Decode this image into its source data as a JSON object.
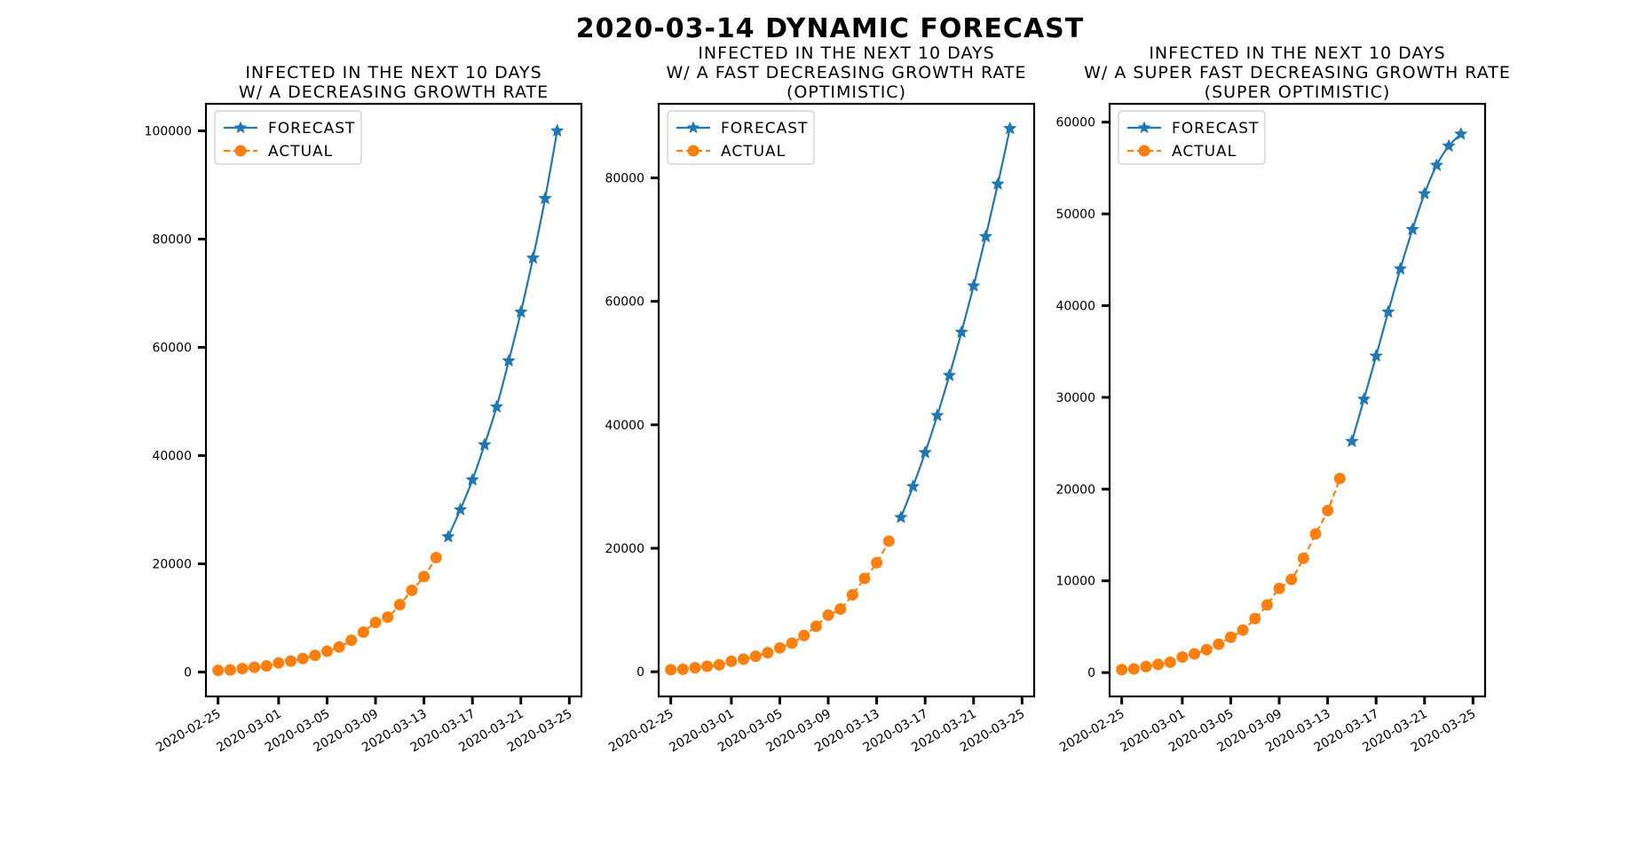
{
  "title": "2020-03-14 DYNAMIC FORECAST",
  "colors": {
    "forecast": "#1f77b4",
    "actual": "#ff7f0e"
  },
  "chart_data": [
    {
      "type": "line",
      "title_lines": [
        "INFECTED IN THE NEXT 10 DAYS",
        "W/ A DECREASING GROWTH RATE"
      ],
      "xlabel": "",
      "ylabel": "",
      "legend": "top-left",
      "grid": false,
      "xlim": [
        "2020-02-24",
        "2020-03-26"
      ],
      "ylim": [
        -4500,
        105000
      ],
      "xticks": [
        "2020-02-25",
        "2020-03-01",
        "2020-03-05",
        "2020-03-09",
        "2020-03-13",
        "2020-03-17",
        "2020-03-21",
        "2020-03-25"
      ],
      "yticks": [
        0,
        20000,
        40000,
        60000,
        80000,
        100000
      ],
      "series": [
        {
          "name": "FORECAST",
          "marker": "star",
          "x": [
            "2020-03-15",
            "2020-03-16",
            "2020-03-17",
            "2020-03-18",
            "2020-03-19",
            "2020-03-20",
            "2020-03-21",
            "2020-03-22",
            "2020-03-23",
            "2020-03-24"
          ],
          "y": [
            25000,
            30000,
            35500,
            42000,
            49000,
            57500,
            66500,
            76500,
            87500,
            100000
          ]
        },
        {
          "name": "ACTUAL",
          "marker": "circle",
          "x": [
            "2020-02-25",
            "2020-02-26",
            "2020-02-27",
            "2020-02-28",
            "2020-02-29",
            "2020-03-01",
            "2020-03-02",
            "2020-03-03",
            "2020-03-04",
            "2020-03-05",
            "2020-03-06",
            "2020-03-07",
            "2020-03-08",
            "2020-03-09",
            "2020-03-10",
            "2020-03-11",
            "2020-03-12",
            "2020-03-13",
            "2020-03-14"
          ],
          "y": [
            322,
            400,
            650,
            888,
            1128,
            1694,
            2036,
            2502,
            3089,
            3858,
            4636,
            5883,
            7375,
            9172,
            10149,
            12462,
            15113,
            17660,
            21157
          ]
        }
      ]
    },
    {
      "type": "line",
      "title_lines": [
        "INFECTED IN THE NEXT 10 DAYS",
        "W/ A FAST DECREASING GROWTH RATE",
        "(OPTIMISTIC)"
      ],
      "xlabel": "",
      "ylabel": "",
      "legend": "top-left",
      "grid": false,
      "xlim": [
        "2020-02-24",
        "2020-03-26"
      ],
      "ylim": [
        -4000,
        92000
      ],
      "xticks": [
        "2020-02-25",
        "2020-03-01",
        "2020-03-05",
        "2020-03-09",
        "2020-03-13",
        "2020-03-17",
        "2020-03-21",
        "2020-03-25"
      ],
      "yticks": [
        0,
        20000,
        40000,
        60000,
        80000
      ],
      "series": [
        {
          "name": "FORECAST",
          "marker": "star",
          "x": [
            "2020-03-15",
            "2020-03-16",
            "2020-03-17",
            "2020-03-18",
            "2020-03-19",
            "2020-03-20",
            "2020-03-21",
            "2020-03-22",
            "2020-03-23",
            "2020-03-24"
          ],
          "y": [
            25000,
            30000,
            35500,
            41500,
            48000,
            55000,
            62500,
            70500,
            79000,
            88000
          ]
        },
        {
          "name": "ACTUAL",
          "marker": "circle",
          "x": [
            "2020-02-25",
            "2020-02-26",
            "2020-02-27",
            "2020-02-28",
            "2020-02-29",
            "2020-03-01",
            "2020-03-02",
            "2020-03-03",
            "2020-03-04",
            "2020-03-05",
            "2020-03-06",
            "2020-03-07",
            "2020-03-08",
            "2020-03-09",
            "2020-03-10",
            "2020-03-11",
            "2020-03-12",
            "2020-03-13",
            "2020-03-14"
          ],
          "y": [
            322,
            400,
            650,
            888,
            1128,
            1694,
            2036,
            2502,
            3089,
            3858,
            4636,
            5883,
            7375,
            9172,
            10149,
            12462,
            15113,
            17660,
            21157
          ]
        }
      ]
    },
    {
      "type": "line",
      "title_lines": [
        "INFECTED IN THE NEXT 10 DAYS",
        "W/ A SUPER FAST DECREASING GROWTH RATE",
        "(SUPER OPTIMISTIC)"
      ],
      "xlabel": "",
      "ylabel": "",
      "legend": "top-left",
      "grid": false,
      "xlim": [
        "2020-02-24",
        "2020-03-26"
      ],
      "ylim": [
        -2600,
        62000
      ],
      "xticks": [
        "2020-02-25",
        "2020-03-01",
        "2020-03-05",
        "2020-03-09",
        "2020-03-13",
        "2020-03-17",
        "2020-03-21",
        "2020-03-25"
      ],
      "yticks": [
        0,
        10000,
        20000,
        30000,
        40000,
        50000,
        60000
      ],
      "series": [
        {
          "name": "FORECAST",
          "marker": "star",
          "x": [
            "2020-03-15",
            "2020-03-16",
            "2020-03-17",
            "2020-03-18",
            "2020-03-19",
            "2020-03-20",
            "2020-03-21",
            "2020-03-22",
            "2020-03-23",
            "2020-03-24"
          ],
          "y": [
            25200,
            29800,
            34500,
            39300,
            44000,
            48300,
            52200,
            55300,
            57400,
            58700
          ]
        },
        {
          "name": "ACTUAL",
          "marker": "circle",
          "x": [
            "2020-02-25",
            "2020-02-26",
            "2020-02-27",
            "2020-02-28",
            "2020-02-29",
            "2020-03-01",
            "2020-03-02",
            "2020-03-03",
            "2020-03-04",
            "2020-03-05",
            "2020-03-06",
            "2020-03-07",
            "2020-03-08",
            "2020-03-09",
            "2020-03-10",
            "2020-03-11",
            "2020-03-12",
            "2020-03-13",
            "2020-03-14"
          ],
          "y": [
            322,
            400,
            650,
            888,
            1128,
            1694,
            2036,
            2502,
            3089,
            3858,
            4636,
            5883,
            7375,
            9172,
            10149,
            12462,
            15113,
            17660,
            21157
          ]
        }
      ]
    }
  ]
}
